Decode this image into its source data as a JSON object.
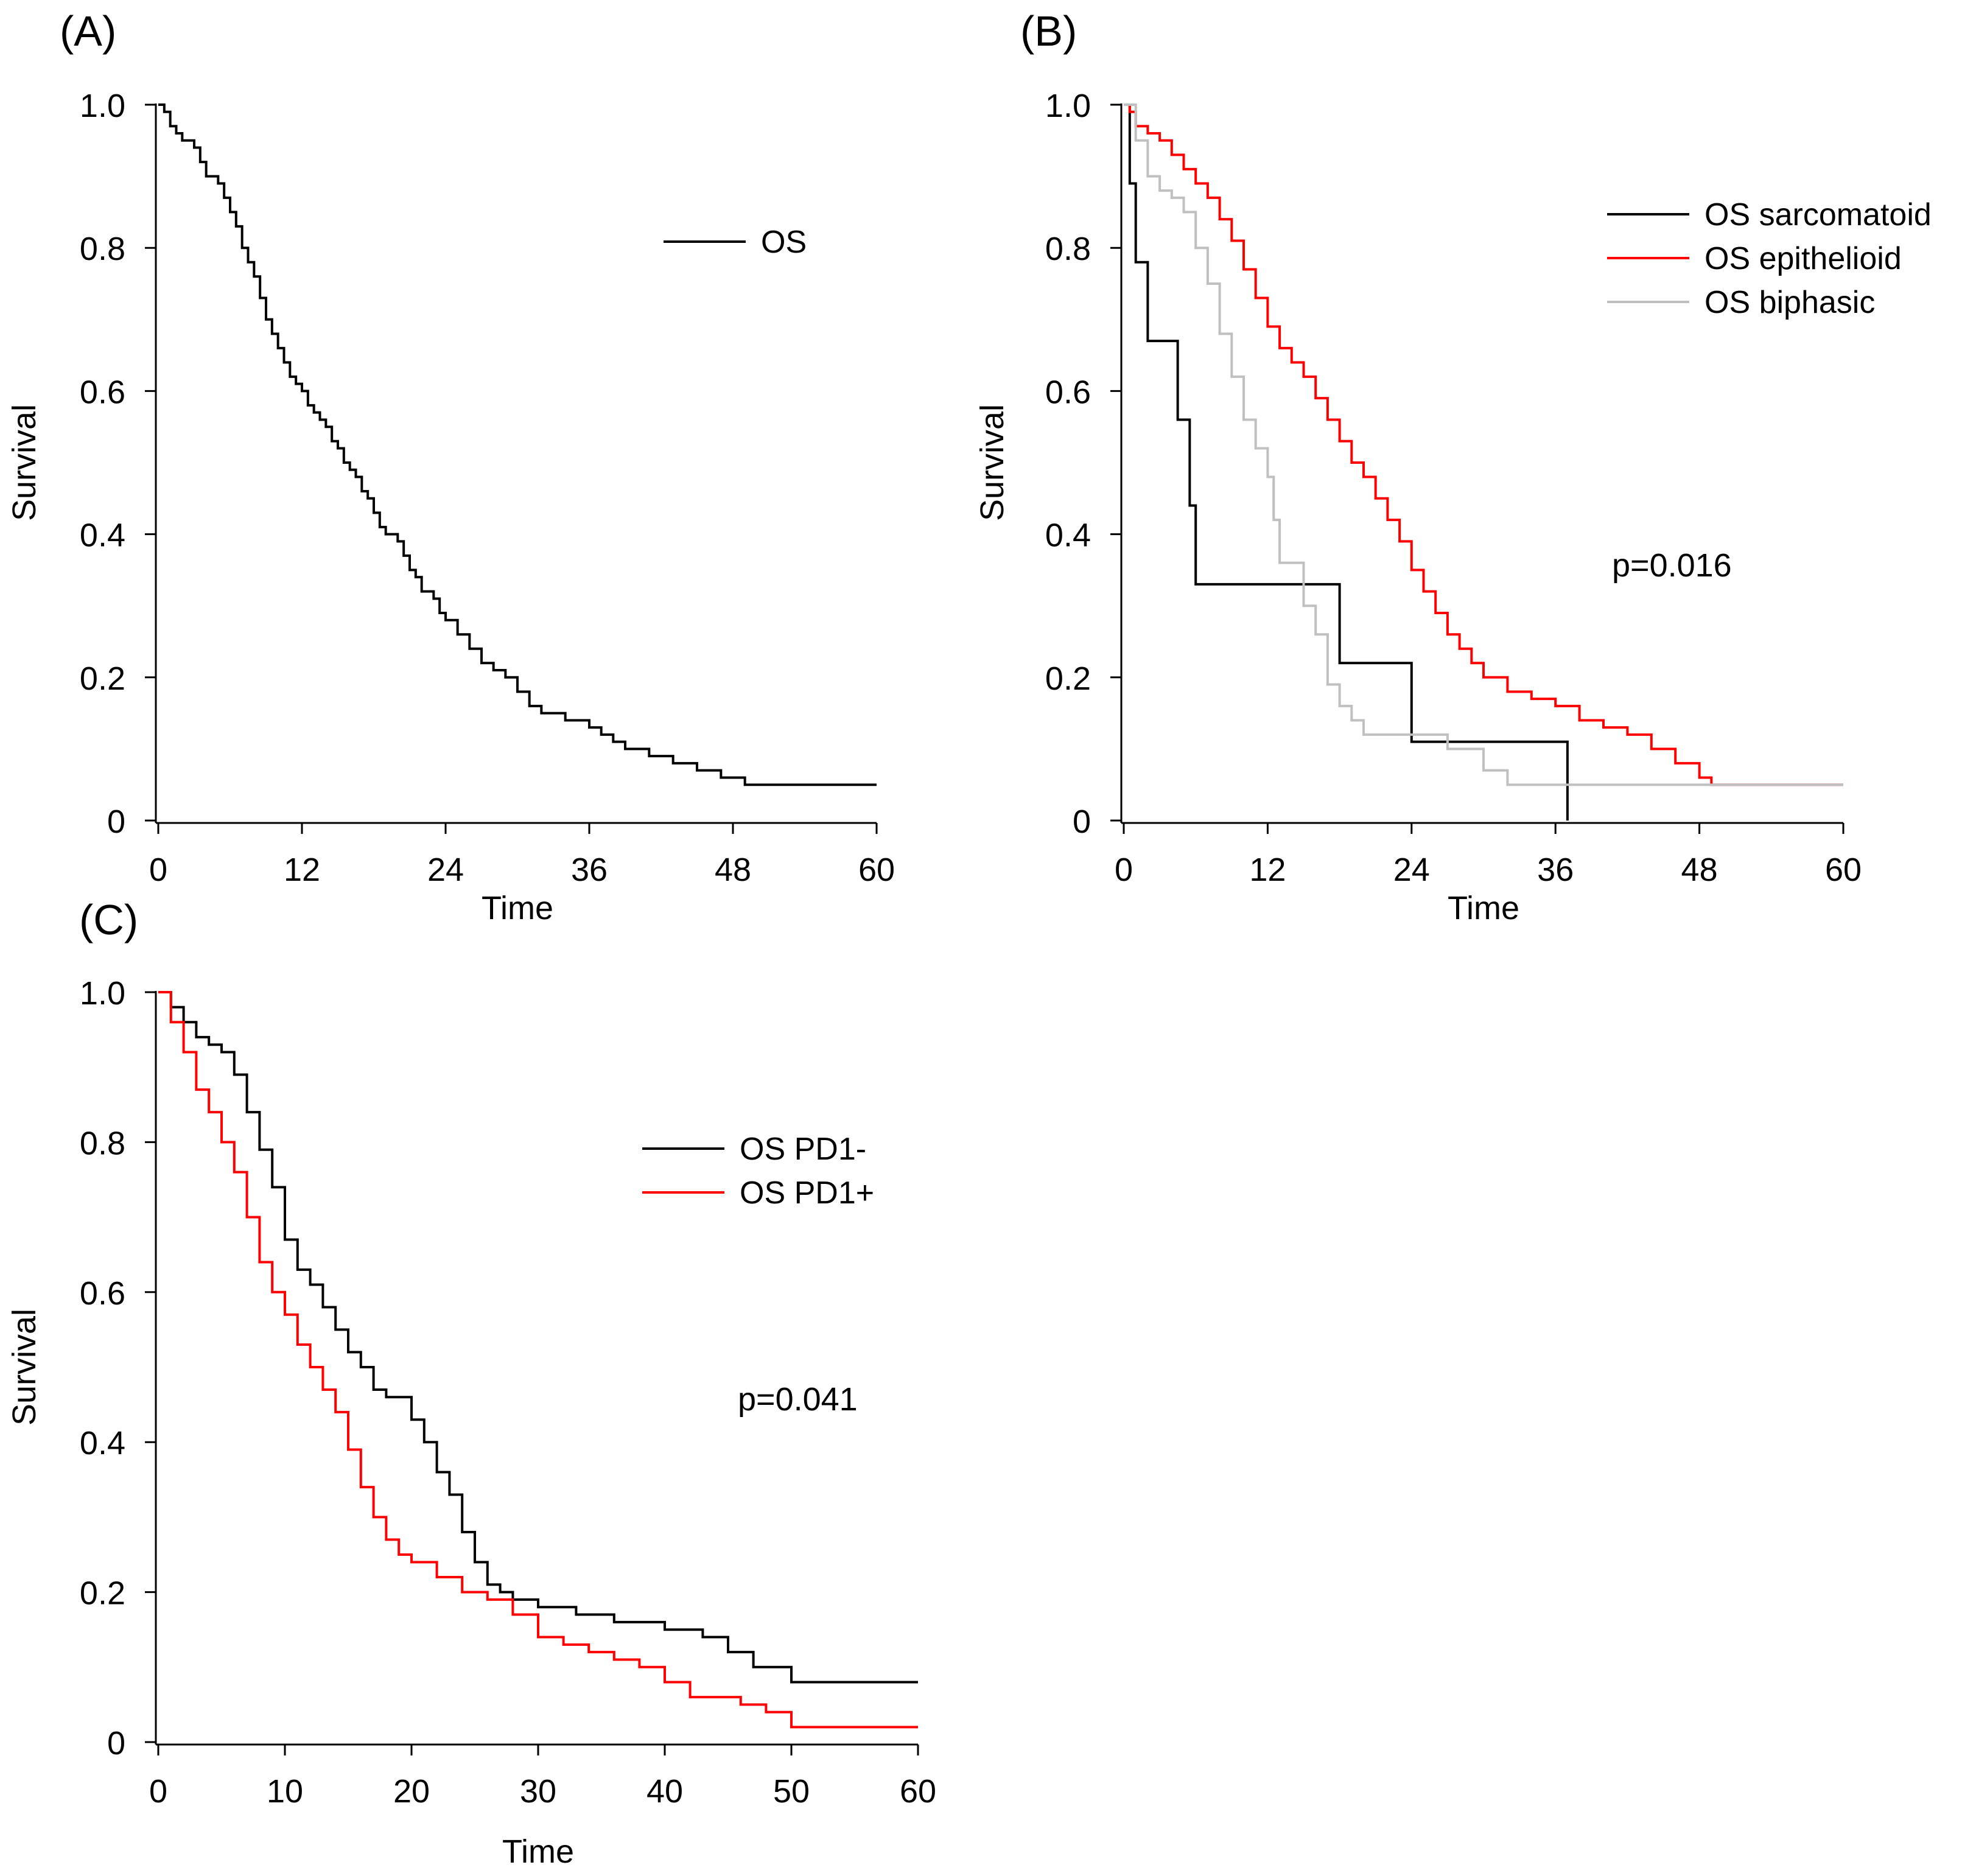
{
  "figure": {
    "panel_labels": [
      "(A)",
      "(B)",
      "(C)"
    ]
  },
  "chart_data": [
    {
      "panel": "(A)",
      "type": "line",
      "subtype": "kaplan-meier",
      "xlabel": "Time",
      "ylabel": "Survival",
      "xlim": [
        0,
        60
      ],
      "ylim": [
        0,
        1
      ],
      "xticks": [
        0,
        12,
        24,
        36,
        48,
        60
      ],
      "xtick_labels": [
        "0",
        "12",
        "24",
        "36",
        "48",
        "60"
      ],
      "yticks": [
        0,
        0.2,
        0.4,
        0.6,
        0.8,
        1.0
      ],
      "ytick_labels": [
        "0",
        "0.2",
        "0.4",
        "0.6",
        "0.8",
        "1.0"
      ],
      "legend_position": "top-right",
      "annotation": "",
      "series": [
        {
          "name": "OS",
          "color": "#000000",
          "points": [
            [
              0,
              1.0
            ],
            [
              0.5,
              0.99
            ],
            [
              1,
              0.97
            ],
            [
              1.5,
              0.96
            ],
            [
              2,
              0.95
            ],
            [
              3,
              0.94
            ],
            [
              3.5,
              0.92
            ],
            [
              4,
              0.9
            ],
            [
              5,
              0.89
            ],
            [
              5.5,
              0.87
            ],
            [
              6,
              0.85
            ],
            [
              6.5,
              0.83
            ],
            [
              7,
              0.8
            ],
            [
              7.5,
              0.78
            ],
            [
              8,
              0.76
            ],
            [
              8.5,
              0.73
            ],
            [
              9,
              0.7
            ],
            [
              9.5,
              0.68
            ],
            [
              10,
              0.66
            ],
            [
              10.5,
              0.64
            ],
            [
              11,
              0.62
            ],
            [
              11.5,
              0.61
            ],
            [
              12,
              0.6
            ],
            [
              12.5,
              0.58
            ],
            [
              13,
              0.57
            ],
            [
              13.5,
              0.56
            ],
            [
              14,
              0.55
            ],
            [
              14.5,
              0.53
            ],
            [
              15,
              0.52
            ],
            [
              15.5,
              0.5
            ],
            [
              16,
              0.49
            ],
            [
              16.5,
              0.48
            ],
            [
              17,
              0.46
            ],
            [
              17.5,
              0.45
            ],
            [
              18,
              0.43
            ],
            [
              18.5,
              0.41
            ],
            [
              19,
              0.4
            ],
            [
              20,
              0.39
            ],
            [
              20.5,
              0.37
            ],
            [
              21,
              0.35
            ],
            [
              21.5,
              0.34
            ],
            [
              22,
              0.32
            ],
            [
              23,
              0.31
            ],
            [
              23.5,
              0.29
            ],
            [
              24,
              0.28
            ],
            [
              25,
              0.26
            ],
            [
              26,
              0.24
            ],
            [
              27,
              0.22
            ],
            [
              28,
              0.21
            ],
            [
              29,
              0.2
            ],
            [
              30,
              0.18
            ],
            [
              31,
              0.16
            ],
            [
              32,
              0.15
            ],
            [
              34,
              0.14
            ],
            [
              36,
              0.13
            ],
            [
              37,
              0.12
            ],
            [
              38,
              0.11
            ],
            [
              39,
              0.1
            ],
            [
              41,
              0.09
            ],
            [
              43,
              0.08
            ],
            [
              45,
              0.07
            ],
            [
              47,
              0.06
            ],
            [
              49,
              0.05
            ],
            [
              60,
              0.05
            ]
          ]
        }
      ]
    },
    {
      "panel": "(B)",
      "type": "line",
      "subtype": "kaplan-meier",
      "xlabel": "Time",
      "ylabel": "Survival",
      "xlim": [
        0,
        60
      ],
      "ylim": [
        0,
        1
      ],
      "xticks": [
        0,
        12,
        24,
        36,
        48,
        60
      ],
      "xtick_labels": [
        "0",
        "12",
        "24",
        "36",
        "48",
        "60"
      ],
      "yticks": [
        0,
        0.2,
        0.4,
        0.6,
        0.8,
        1.0
      ],
      "ytick_labels": [
        "0",
        "0.2",
        "0.4",
        "0.6",
        "0.8",
        "1.0"
      ],
      "legend_position": "top-right",
      "annotation": "p=0.016",
      "series": [
        {
          "name": "OS sarcomatoid",
          "color": "#000000",
          "points": [
            [
              0,
              1.0
            ],
            [
              0.5,
              0.89
            ],
            [
              1,
              0.78
            ],
            [
              2,
              0.67
            ],
            [
              4.5,
              0.56
            ],
            [
              5.5,
              0.44
            ],
            [
              6,
              0.33
            ],
            [
              18,
              0.22
            ],
            [
              24,
              0.11
            ],
            [
              37,
              0.0
            ]
          ]
        },
        {
          "name": "OS epithelioid",
          "color": "#ff0000",
          "points": [
            [
              0,
              1.0
            ],
            [
              0.5,
              0.99
            ],
            [
              1,
              0.97
            ],
            [
              2,
              0.96
            ],
            [
              3,
              0.95
            ],
            [
              4,
              0.93
            ],
            [
              5,
              0.91
            ],
            [
              6,
              0.89
            ],
            [
              7,
              0.87
            ],
            [
              8,
              0.84
            ],
            [
              9,
              0.81
            ],
            [
              10,
              0.77
            ],
            [
              11,
              0.73
            ],
            [
              12,
              0.69
            ],
            [
              13,
              0.66
            ],
            [
              14,
              0.64
            ],
            [
              15,
              0.62
            ],
            [
              16,
              0.59
            ],
            [
              17,
              0.56
            ],
            [
              18,
              0.53
            ],
            [
              19,
              0.5
            ],
            [
              20,
              0.48
            ],
            [
              21,
              0.45
            ],
            [
              22,
              0.42
            ],
            [
              23,
              0.39
            ],
            [
              24,
              0.35
            ],
            [
              25,
              0.32
            ],
            [
              26,
              0.29
            ],
            [
              27,
              0.26
            ],
            [
              28,
              0.24
            ],
            [
              29,
              0.22
            ],
            [
              30,
              0.2
            ],
            [
              32,
              0.18
            ],
            [
              34,
              0.17
            ],
            [
              36,
              0.16
            ],
            [
              38,
              0.14
            ],
            [
              40,
              0.13
            ],
            [
              42,
              0.12
            ],
            [
              44,
              0.1
            ],
            [
              46,
              0.08
            ],
            [
              48,
              0.06
            ],
            [
              49,
              0.05
            ],
            [
              60,
              0.05
            ]
          ]
        },
        {
          "name": "OS biphasic",
          "color": "#c0c0c0",
          "points": [
            [
              0,
              1.0
            ],
            [
              1,
              0.95
            ],
            [
              2,
              0.9
            ],
            [
              3,
              0.88
            ],
            [
              4,
              0.87
            ],
            [
              5,
              0.85
            ],
            [
              6,
              0.8
            ],
            [
              7,
              0.75
            ],
            [
              8,
              0.68
            ],
            [
              9,
              0.62
            ],
            [
              10,
              0.56
            ],
            [
              11,
              0.52
            ],
            [
              12,
              0.48
            ],
            [
              12.5,
              0.42
            ],
            [
              13,
              0.36
            ],
            [
              15,
              0.3
            ],
            [
              16,
              0.26
            ],
            [
              17,
              0.19
            ],
            [
              18,
              0.16
            ],
            [
              19,
              0.14
            ],
            [
              20,
              0.12
            ],
            [
              23,
              0.12
            ],
            [
              27,
              0.1
            ],
            [
              30,
              0.07
            ],
            [
              32,
              0.05
            ],
            [
              60,
              0.05
            ]
          ]
        }
      ]
    },
    {
      "panel": "(C)",
      "type": "line",
      "subtype": "kaplan-meier",
      "xlabel": "Time",
      "ylabel": "Survival",
      "xlim": [
        0,
        60
      ],
      "ylim": [
        0,
        1
      ],
      "xticks": [
        0,
        10,
        20,
        30,
        40,
        50,
        60
      ],
      "xtick_labels": [
        "0",
        "10",
        "20",
        "30",
        "40",
        "50",
        "60"
      ],
      "yticks": [
        0,
        0.2,
        0.4,
        0.6,
        0.8,
        1.0
      ],
      "ytick_labels": [
        "0",
        "0.2",
        "0.4",
        "0.6",
        "0.8",
        "1.0"
      ],
      "legend_position": "top-right",
      "annotation": "p=0.041",
      "series": [
        {
          "name": "OS PD1-",
          "color": "#000000",
          "points": [
            [
              0,
              1.0
            ],
            [
              1,
              0.98
            ],
            [
              2,
              0.96
            ],
            [
              3,
              0.94
            ],
            [
              4,
              0.93
            ],
            [
              5,
              0.92
            ],
            [
              6,
              0.89
            ],
            [
              7,
              0.84
            ],
            [
              8,
              0.79
            ],
            [
              9,
              0.74
            ],
            [
              10,
              0.67
            ],
            [
              11,
              0.63
            ],
            [
              12,
              0.61
            ],
            [
              13,
              0.58
            ],
            [
              14,
              0.55
            ],
            [
              15,
              0.52
            ],
            [
              16,
              0.5
            ],
            [
              17,
              0.47
            ],
            [
              18,
              0.46
            ],
            [
              20,
              0.43
            ],
            [
              21,
              0.4
            ],
            [
              22,
              0.36
            ],
            [
              23,
              0.33
            ],
            [
              24,
              0.28
            ],
            [
              25,
              0.24
            ],
            [
              26,
              0.21
            ],
            [
              27,
              0.2
            ],
            [
              28,
              0.19
            ],
            [
              30,
              0.18
            ],
            [
              33,
              0.17
            ],
            [
              36,
              0.16
            ],
            [
              40,
              0.15
            ],
            [
              43,
              0.14
            ],
            [
              45,
              0.12
            ],
            [
              47,
              0.1
            ],
            [
              50,
              0.08
            ],
            [
              60,
              0.08
            ]
          ]
        },
        {
          "name": "OS PD1+",
          "color": "#ff0000",
          "points": [
            [
              0,
              1.0
            ],
            [
              1,
              0.96
            ],
            [
              2,
              0.92
            ],
            [
              3,
              0.87
            ],
            [
              4,
              0.84
            ],
            [
              5,
              0.8
            ],
            [
              6,
              0.76
            ],
            [
              7,
              0.7
            ],
            [
              8,
              0.64
            ],
            [
              9,
              0.6
            ],
            [
              10,
              0.57
            ],
            [
              11,
              0.53
            ],
            [
              12,
              0.5
            ],
            [
              13,
              0.47
            ],
            [
              14,
              0.44
            ],
            [
              15,
              0.39
            ],
            [
              16,
              0.34
            ],
            [
              17,
              0.3
            ],
            [
              18,
              0.27
            ],
            [
              19,
              0.25
            ],
            [
              20,
              0.24
            ],
            [
              22,
              0.22
            ],
            [
              24,
              0.2
            ],
            [
              26,
              0.19
            ],
            [
              28,
              0.17
            ],
            [
              30,
              0.14
            ],
            [
              32,
              0.13
            ],
            [
              34,
              0.12
            ],
            [
              36,
              0.11
            ],
            [
              38,
              0.1
            ],
            [
              40,
              0.08
            ],
            [
              42,
              0.06
            ],
            [
              46,
              0.05
            ],
            [
              48,
              0.04
            ],
            [
              50,
              0.02
            ],
            [
              60,
              0.02
            ]
          ]
        }
      ]
    }
  ]
}
